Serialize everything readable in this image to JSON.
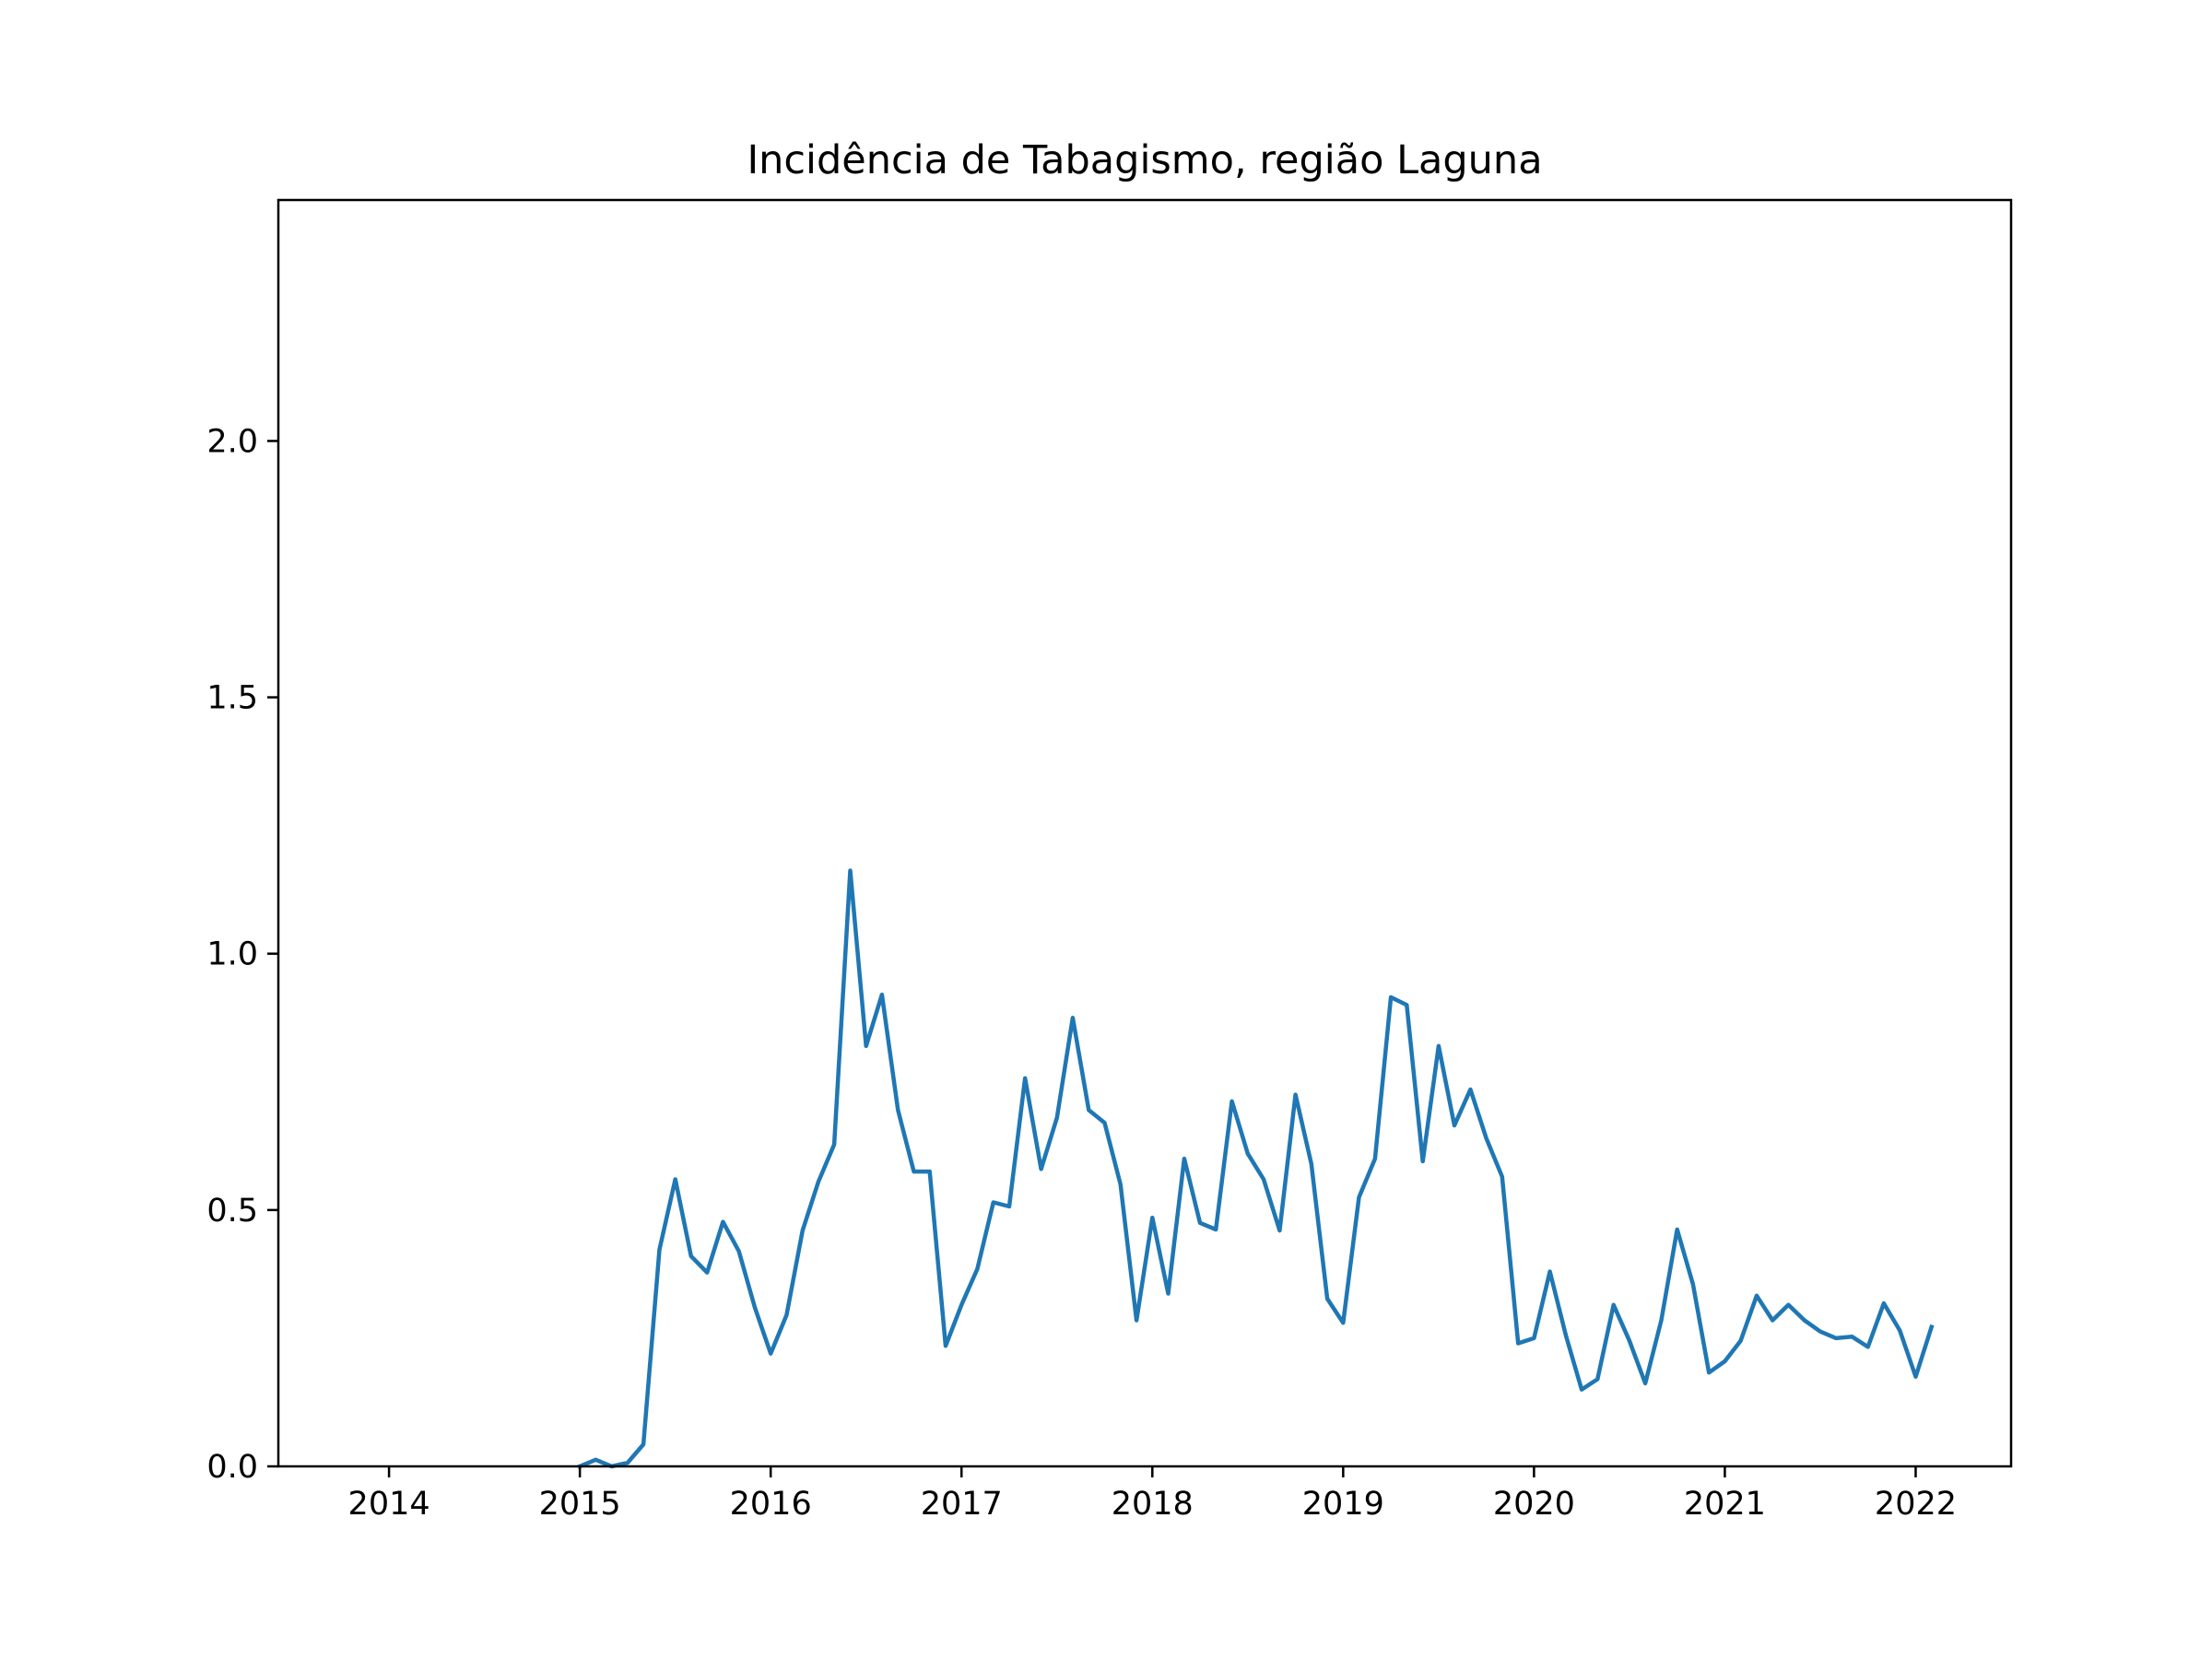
{
  "chart_data": {
    "type": "line",
    "title": "Incidência de Tabagismo, região Laguna",
    "xlabel": "",
    "ylabel": "",
    "xlim": [
      2013.42,
      2022.5
    ],
    "ylim": [
      0.0,
      2.47
    ],
    "x_ticks": [
      {
        "value": 2014,
        "label": "2014"
      },
      {
        "value": 2015,
        "label": "2015"
      },
      {
        "value": 2016,
        "label": "2016"
      },
      {
        "value": 2017,
        "label": "2017"
      },
      {
        "value": 2018,
        "label": "2018"
      },
      {
        "value": 2019,
        "label": "2019"
      },
      {
        "value": 2020,
        "label": "2020"
      },
      {
        "value": 2021,
        "label": "2021"
      },
      {
        "value": 2022,
        "label": "2022"
      }
    ],
    "y_ticks": [
      {
        "value": 0.0,
        "label": "0.0"
      },
      {
        "value": 0.5,
        "label": "0.5"
      },
      {
        "value": 1.0,
        "label": "1.0"
      },
      {
        "value": 1.5,
        "label": "1.5"
      },
      {
        "value": 2.0,
        "label": "2.0"
      }
    ],
    "grid": false,
    "line_color": "#1f77b4",
    "series": [
      {
        "x": [
          2015.0,
          2015.083,
          2015.167,
          2015.25,
          2015.333,
          2015.417,
          2015.5,
          2015.583,
          2015.667,
          2015.75,
          2015.833,
          2015.917,
          2016.0,
          2016.083,
          2016.167,
          2016.25,
          2016.333,
          2016.417,
          2016.5,
          2016.583,
          2016.667,
          2016.75,
          2016.833,
          2016.917,
          2017.0,
          2017.083,
          2017.167,
          2017.25,
          2017.333,
          2017.417,
          2017.5,
          2017.583,
          2017.667,
          2017.75,
          2017.833,
          2017.917,
          2018.0,
          2018.083,
          2018.167,
          2018.25,
          2018.333,
          2018.417,
          2018.5,
          2018.583,
          2018.667,
          2018.75,
          2018.833,
          2018.917,
          2019.0,
          2019.083,
          2019.167,
          2019.25,
          2019.333,
          2019.417,
          2019.5,
          2019.583,
          2019.667,
          2019.75,
          2019.833,
          2019.917,
          2020.0,
          2020.083,
          2020.167,
          2020.25,
          2020.333,
          2020.417,
          2020.5,
          2020.583,
          2020.667,
          2020.75,
          2020.833,
          2020.917,
          2021.0,
          2021.083,
          2021.167,
          2021.25,
          2021.333,
          2021.417,
          2021.5,
          2021.583,
          2021.667,
          2021.75,
          2021.833,
          2021.917,
          2022.0,
          2022.083
        ],
        "y": [
          0.0,
          0.013,
          0.0,
          0.007,
          0.043,
          0.423,
          0.56,
          0.41,
          0.378,
          0.477,
          0.42,
          0.31,
          0.22,
          0.295,
          0.46,
          0.555,
          0.628,
          1.162,
          0.82,
          0.92,
          0.695,
          0.575,
          0.575,
          0.235,
          0.315,
          0.385,
          0.515,
          0.507,
          0.757,
          0.58,
          0.68,
          0.875,
          0.695,
          0.67,
          0.55,
          0.285,
          0.485,
          0.337,
          0.6,
          0.475,
          0.462,
          0.712,
          0.61,
          0.56,
          0.46,
          0.725,
          0.59,
          0.327,
          0.28,
          0.525,
          0.6,
          0.915,
          0.9,
          0.595,
          0.82,
          0.665,
          0.735,
          0.64,
          0.565,
          0.24,
          0.25,
          0.38,
          0.255,
          0.15,
          0.17,
          0.315,
          0.245,
          0.162,
          0.285,
          0.462,
          0.355,
          0.183,
          0.205,
          0.245,
          0.333,
          0.285,
          0.315,
          0.285,
          0.263,
          0.25,
          0.253,
          0.233,
          0.318,
          0.265,
          0.175,
          0.272
        ]
      }
    ]
  }
}
